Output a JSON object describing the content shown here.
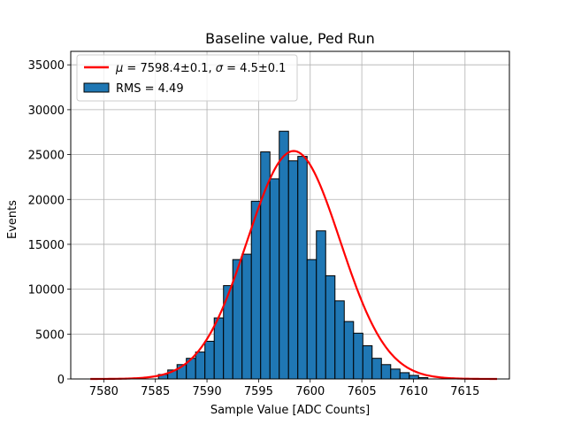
{
  "chart_data": {
    "type": "bar",
    "title": "Baseline value, Ped Run",
    "xlabel": "Sample Value [ADC Counts]",
    "ylabel": "Events",
    "xlim": [
      7576.8,
      7619.3
    ],
    "ylim": [
      0,
      36500
    ],
    "grid": true,
    "x_ticks": [
      7580,
      7585,
      7590,
      7595,
      7600,
      7605,
      7610,
      7615
    ],
    "y_ticks": [
      0,
      5000,
      10000,
      15000,
      20000,
      25000,
      30000,
      35000
    ],
    "legend": {
      "placement": "top-left",
      "entries": [
        "$\\mu = 7598.4{\\pm}0.1$, $\\sigma = 4.5{\\pm}0.1$",
        "RMS = 4.49"
      ]
    },
    "histogram": {
      "name": "RMS = 4.49",
      "color": "#1f77b4",
      "edge_color": "#000000",
      "bin_width": 0.9,
      "bin_left_edges": [
        7585.3,
        7586.2,
        7587.1,
        7588.0,
        7588.9,
        7589.8,
        7590.7,
        7591.6,
        7592.5,
        7593.4,
        7594.3,
        7595.2,
        7596.1,
        7597.0,
        7597.9,
        7598.8,
        7599.7,
        7600.6,
        7601.5,
        7602.4,
        7603.3,
        7604.2,
        7605.1,
        7606.0,
        7606.9,
        7607.8,
        7608.7,
        7609.6,
        7610.5
      ],
      "counts": [
        500,
        1000,
        1600,
        2300,
        3000,
        4200,
        6800,
        10400,
        13300,
        13900,
        19800,
        25300,
        22300,
        27600,
        24300,
        24800,
        13300,
        16500,
        11500,
        8700,
        6400,
        5100,
        3700,
        2300,
        1600,
        1100,
        700,
        400,
        150
      ]
    },
    "fit": {
      "name": "$\\mu = 7598.4{\\pm}0.1$, $\\sigma = 4.5{\\pm}0.1$",
      "color": "#ff0000",
      "mu": 7598.4,
      "sigma": 4.5,
      "amplitude": 25400,
      "x_range": [
        7578.7,
        7618.1
      ]
    }
  }
}
